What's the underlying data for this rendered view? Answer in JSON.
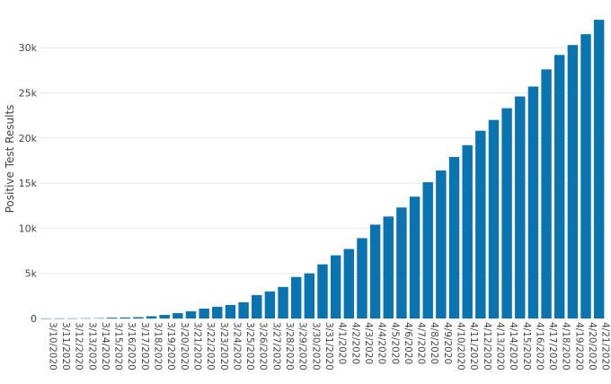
{
  "chart_data": {
    "type": "bar",
    "title": "",
    "xlabel": "",
    "ylabel": "Positive Test Results",
    "ylim": [
      0,
      33500
    ],
    "grid": true,
    "legend": "none",
    "bar_color": "#0a74b0",
    "grid_color": "#e8e8e8",
    "y_ticks": [
      {
        "value": 0,
        "label": "0"
      },
      {
        "value": 5000,
        "label": "5k"
      },
      {
        "value": 10000,
        "label": "10k"
      },
      {
        "value": 15000,
        "label": "15k"
      },
      {
        "value": 20000,
        "label": "20k"
      },
      {
        "value": 25000,
        "label": "25k"
      },
      {
        "value": 30000,
        "label": "30k"
      }
    ],
    "categories": [
      "3/10/2020",
      "3/11/2020",
      "3/12/2020",
      "3/13/2020",
      "3/14/2020",
      "3/15/2020",
      "3/16/2020",
      "3/17/2020",
      "3/18/2020",
      "3/19/2020",
      "3/20/2020",
      "3/21/2020",
      "3/22/2020",
      "3/23/2020",
      "3/24/2020",
      "3/25/2020",
      "3/26/2020",
      "3/27/2020",
      "3/28/2020",
      "3/29/2020",
      "3/30/2020",
      "3/31/2020",
      "4/1/2020",
      "4/2/2020",
      "4/3/2020",
      "4/4/2020",
      "4/5/2020",
      "4/6/2020",
      "4/7/2020",
      "4/8/2020",
      "4/9/2020",
      "4/10/2020",
      "4/11/2020",
      "4/12/2020",
      "4/13/2020",
      "4/14/2020",
      "4/15/2020",
      "4/16/2020",
      "4/17/2020",
      "4/18/2020",
      "4/19/2020",
      "4/20/2020",
      "4/21/2020"
    ],
    "values": [
      10,
      15,
      20,
      30,
      40,
      100,
      120,
      150,
      250,
      400,
      600,
      800,
      1100,
      1300,
      1500,
      1800,
      2600,
      3000,
      3500,
      4600,
      5000,
      6000,
      7000,
      7700,
      8900,
      10400,
      11300,
      12300,
      13500,
      15100,
      16400,
      17900,
      19200,
      20800,
      22000,
      23300,
      24600,
      25700,
      27600,
      29200,
      30300,
      31500,
      33100
    ]
  }
}
